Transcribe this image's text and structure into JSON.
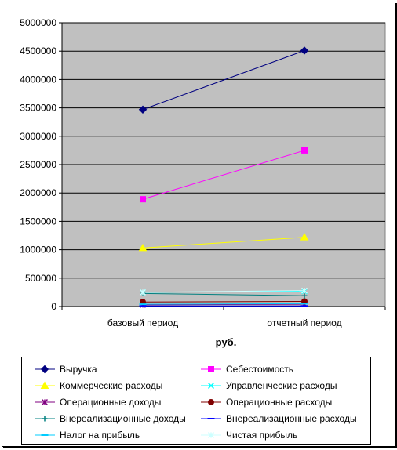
{
  "chart_data": {
    "type": "line",
    "categories": [
      "базовый период",
      "отчетный период"
    ],
    "xlabel": "руб.",
    "ylabel": "",
    "ylim": [
      0,
      5000000
    ],
    "yticks": [
      0,
      500000,
      1000000,
      1500000,
      2000000,
      2500000,
      3000000,
      3500000,
      4000000,
      4500000,
      5000000
    ],
    "grid": true,
    "legend_position": "bottom",
    "plot_background": "#c0c0c0",
    "series": [
      {
        "name": "Выручка",
        "values": [
          3470000,
          4510000
        ],
        "color": "#000080",
        "marker": "diamond"
      },
      {
        "name": "Себестоимость",
        "values": [
          1890000,
          2750000
        ],
        "color": "#ff00ff",
        "marker": "square"
      },
      {
        "name": "Коммерческие расходы",
        "values": [
          1030000,
          1220000
        ],
        "color": "#ffff00",
        "marker": "triangle"
      },
      {
        "name": "Управленческие расходы",
        "values": [
          250000,
          270000
        ],
        "color": "#00ffff",
        "marker": "x"
      },
      {
        "name": "Операционные доходы",
        "values": [
          30000,
          40000
        ],
        "color": "#800080",
        "marker": "star"
      },
      {
        "name": "Операционные расходы",
        "values": [
          80000,
          90000
        ],
        "color": "#800000",
        "marker": "circle"
      },
      {
        "name": "Внереализационные доходы",
        "values": [
          230000,
          190000
        ],
        "color": "#008080",
        "marker": "plus"
      },
      {
        "name": "Внереализационные расходы",
        "values": [
          10000,
          10000
        ],
        "color": "#0000ff",
        "marker": "dash"
      },
      {
        "name": "Налог на прибыль",
        "values": [
          40000,
          50000
        ],
        "color": "#00ccff",
        "marker": "dash"
      },
      {
        "name": "Чистая прибыль",
        "values": [
          250000,
          280000
        ],
        "color": "#ccffff",
        "marker": "star"
      }
    ]
  }
}
